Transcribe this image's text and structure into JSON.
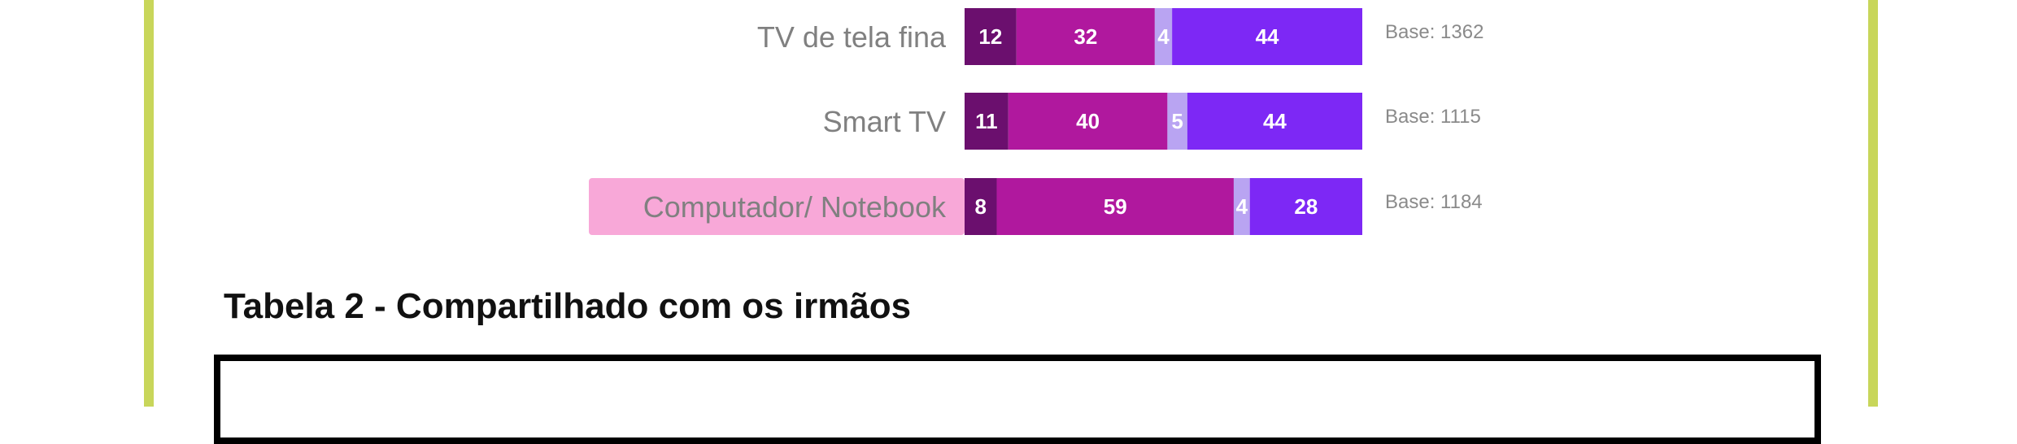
{
  "chart_data": {
    "type": "bar",
    "orientation": "horizontal",
    "stacked": true,
    "categories": [
      "TV de tela fina",
      "Smart TV",
      "Computador/ Notebook"
    ],
    "series": [
      {
        "values": [
          12,
          11,
          8
        ],
        "color": "#6b0f6e"
      },
      {
        "values": [
          32,
          40,
          59
        ],
        "color": "#b0189e"
      },
      {
        "values": [
          4,
          5,
          4
        ],
        "color": "#b9a4f2"
      },
      {
        "values": [
          44,
          44,
          28
        ],
        "color": "#7d28f5"
      }
    ],
    "bases": [
      "Base: 1362",
      "Base: 1115",
      "Base: 1184"
    ],
    "highlighted_category": "Computador/ Notebook",
    "highlight_color": "#f8a8d8"
  },
  "table": {
    "title": "Tabela 2 - Compartilhado com os irmãos"
  }
}
